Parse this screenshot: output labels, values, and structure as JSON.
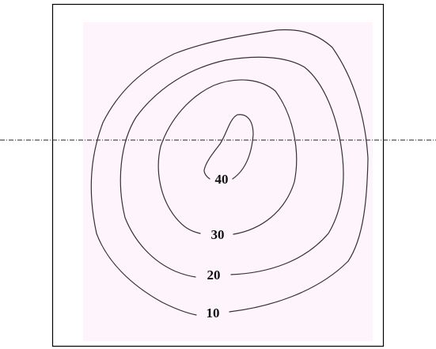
{
  "contours": [
    {
      "label": "40"
    },
    {
      "label": "30"
    },
    {
      "label": "20"
    },
    {
      "label": "10"
    }
  ]
}
